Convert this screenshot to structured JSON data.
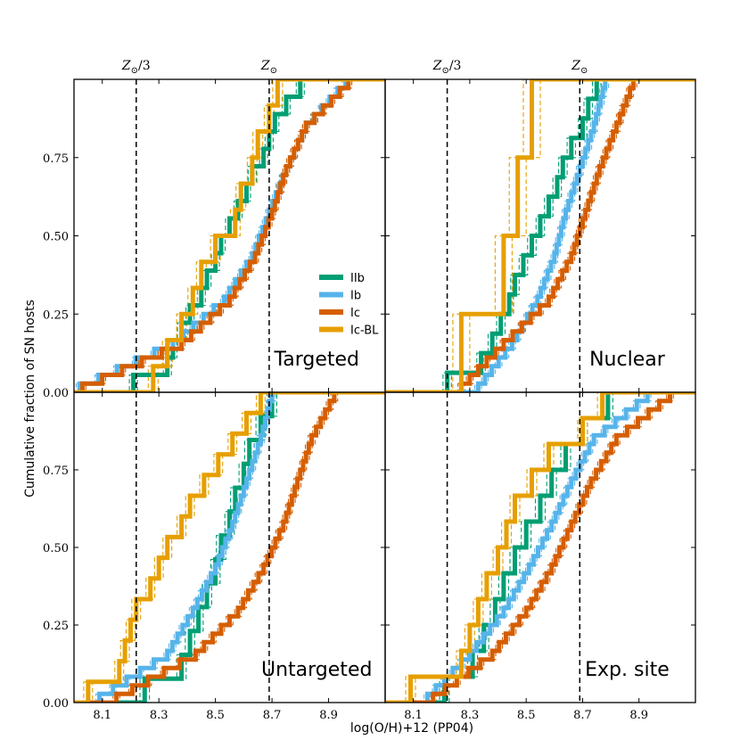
{
  "chart_data": {
    "type": "line",
    "subtype": "cumulative step plot (2x2 panels)",
    "xlabel": "log(O/H)+12 (PP04)",
    "ylabel": "Cumulative fraction of SN hosts",
    "xlim": [
      8.0,
      9.1
    ],
    "ylim": [
      0.0,
      1.0
    ],
    "xticks": [
      8.1,
      8.3,
      8.5,
      8.7,
      8.9
    ],
    "xtick_labels": [
      "8.1",
      "8.3",
      "8.5",
      "8.7",
      "8.9"
    ],
    "yticks": [
      0.0,
      0.25,
      0.5,
      0.75
    ],
    "ytick_labels": [
      "0.00",
      "0.25",
      "0.50",
      "0.75"
    ],
    "reference_lines": [
      {
        "x": 8.22,
        "label_tex": "Z⊙/3",
        "label_main": "Z",
        "label_sub": "⊙",
        "label_suffix": "/3"
      },
      {
        "x": 8.69,
        "label_tex": "Z⊙",
        "label_main": "Z",
        "label_sub": "⊙",
        "label_suffix": ""
      }
    ],
    "legend": {
      "placement": "lower-right of top-left panel",
      "entries": [
        {
          "name": "IIb",
          "color": "#009E73"
        },
        {
          "name": "Ib",
          "color": "#56B4E9"
        },
        {
          "name": "Ic",
          "color": "#D55E00"
        },
        {
          "name": "Ic-BL",
          "color": "#E69F00"
        }
      ]
    },
    "panels": [
      {
        "title": "Targeted",
        "series": [
          {
            "name": "IIb",
            "color": "#009E73",
            "x": [
              8.21,
              8.33,
              8.35,
              8.38,
              8.41,
              8.45,
              8.47,
              8.5,
              8.52,
              8.55,
              8.58,
              8.61,
              8.63,
              8.67,
              8.69,
              8.71,
              8.75,
              8.8
            ]
          },
          {
            "name": "Ib",
            "color": "#56B4E9",
            "mode": "smooth",
            "q": [
              8.02,
              8.35,
              8.53,
              8.63,
              8.69,
              8.75,
              8.82,
              8.96
            ]
          },
          {
            "name": "Ic",
            "color": "#D55E00",
            "mode": "smooth",
            "q": [
              8.03,
              8.38,
              8.55,
              8.64,
              8.7,
              8.75,
              8.82,
              8.97
            ]
          },
          {
            "name": "Ic-BL",
            "color": "#E69F00",
            "x": [
              8.28,
              8.33,
              8.38,
              8.42,
              8.45,
              8.5,
              8.57,
              8.59,
              8.63,
              8.65,
              8.69,
              8.72
            ]
          }
        ]
      },
      {
        "title": "Nuclear",
        "series": [
          {
            "name": "IIb",
            "color": "#009E73",
            "x": [
              8.22,
              8.34,
              8.38,
              8.41,
              8.44,
              8.46,
              8.49,
              8.52,
              8.55,
              8.58,
              8.61,
              8.63,
              8.66,
              8.7,
              8.72,
              8.75
            ]
          },
          {
            "name": "Ib",
            "color": "#56B4E9",
            "mode": "smooth",
            "q": [
              8.33,
              8.45,
              8.54,
              8.6,
              8.64,
              8.69,
              8.74,
              8.78
            ]
          },
          {
            "name": "Ic",
            "color": "#D55E00",
            "mode": "smooth",
            "q": [
              8.27,
              8.42,
              8.58,
              8.66,
              8.71,
              8.76,
              8.82,
              8.88
            ]
          },
          {
            "name": "Ic-BL",
            "color": "#E69F00",
            "x": [
              8.27,
              8.42,
              8.47,
              8.52
            ]
          }
        ]
      },
      {
        "title": "Untargeted",
        "series": [
          {
            "name": "IIb",
            "color": "#009E73",
            "x": [
              8.25,
              8.38,
              8.41,
              8.44,
              8.47,
              8.5,
              8.52,
              8.55,
              8.57,
              8.6,
              8.62,
              8.66,
              8.7
            ]
          },
          {
            "name": "Ib",
            "color": "#56B4E9",
            "mode": "smooth",
            "q": [
              8.09,
              8.33,
              8.42,
              8.5,
              8.56,
              8.61,
              8.66,
              8.7
            ]
          },
          {
            "name": "Ic",
            "color": "#D55E00",
            "mode": "smooth",
            "q": [
              8.15,
              8.43,
              8.58,
              8.67,
              8.74,
              8.79,
              8.84,
              8.92
            ]
          },
          {
            "name": "Ic-BL",
            "color": "#E69F00",
            "x": [
              8.05,
              8.16,
              8.18,
              8.2,
              8.22,
              8.27,
              8.3,
              8.33,
              8.38,
              8.41,
              8.46,
              8.51,
              8.56,
              8.61,
              8.66
            ]
          }
        ]
      },
      {
        "title": "Exp. site",
        "series": [
          {
            "name": "IIb",
            "color": "#009E73",
            "x": [
              8.21,
              8.31,
              8.35,
              8.39,
              8.42,
              8.46,
              8.5,
              8.55,
              8.59,
              8.64,
              8.7,
              8.79
            ]
          },
          {
            "name": "Ib",
            "color": "#56B4E9",
            "mode": "smooth",
            "q": [
              8.15,
              8.3,
              8.42,
              8.51,
              8.59,
              8.66,
              8.74,
              8.93
            ]
          },
          {
            "name": "Ic",
            "color": "#D55E00",
            "mode": "smooth",
            "q": [
              8.17,
              8.38,
              8.5,
              8.59,
              8.66,
              8.73,
              8.82,
              9.01
            ]
          },
          {
            "name": "Ic-BL",
            "color": "#E69F00",
            "x": [
              8.09,
              8.27,
              8.3,
              8.33,
              8.36,
              8.4,
              8.43,
              8.46,
              8.52,
              8.58,
              8.7,
              8.77
            ]
          }
        ]
      }
    ]
  }
}
